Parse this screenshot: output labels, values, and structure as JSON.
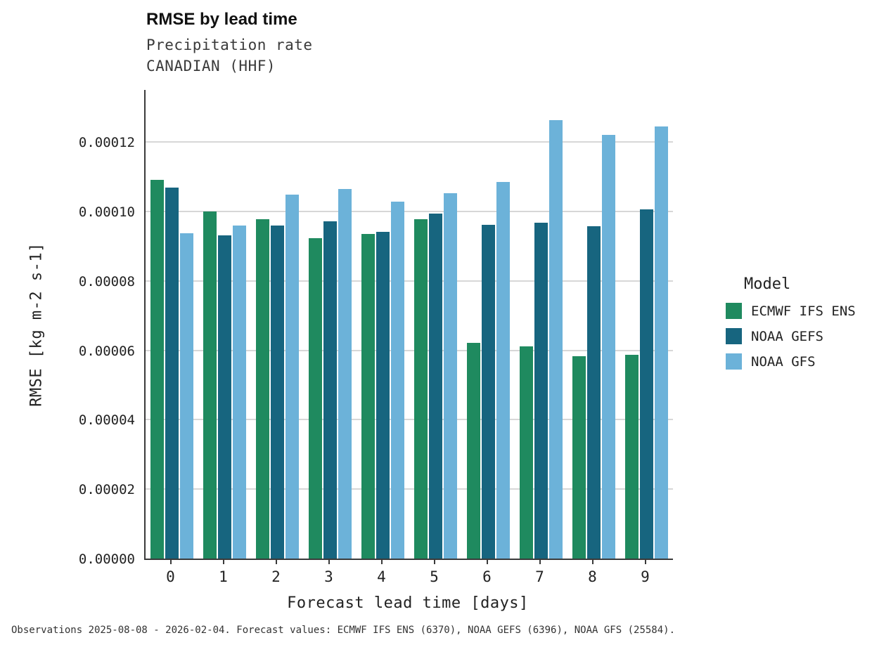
{
  "chart_data": {
    "type": "bar",
    "title": "RMSE by lead time",
    "subtitle": [
      "Precipitation rate",
      "CANADIAN (HHF)"
    ],
    "xlabel": "Forecast lead time [days]",
    "ylabel": "RMSE [kg m-2 s-1]",
    "legend_title": "Model",
    "categories": [
      "0",
      "1",
      "2",
      "3",
      "4",
      "5",
      "6",
      "7",
      "8",
      "9"
    ],
    "series": [
      {
        "name": "ECMWF IFS ENS",
        "color": "#1f8a5f",
        "values": [
          0.000109,
          0.0001,
          9.78e-05,
          9.23e-05,
          9.35e-05,
          9.78e-05,
          6.22e-05,
          6.12e-05,
          5.83e-05,
          5.87e-05
        ]
      },
      {
        "name": "NOAA GEFS",
        "color": "#17657f",
        "values": [
          0.0001068,
          9.32e-05,
          9.6e-05,
          9.72e-05,
          9.42e-05,
          9.93e-05,
          9.62e-05,
          9.68e-05,
          9.58e-05,
          0.0001005
        ]
      },
      {
        "name": "NOAA GFS",
        "color": "#6cb2d9",
        "values": [
          9.37e-05,
          9.6e-05,
          0.0001048,
          0.0001065,
          0.0001028,
          0.0001052,
          0.0001085,
          0.0001263,
          0.000122,
          0.0001245
        ]
      }
    ],
    "ylim": [
      0,
      0.000135
    ],
    "yticks": [
      0,
      2e-05,
      4e-05,
      6e-05,
      8e-05,
      0.0001,
      0.00012
    ],
    "ytick_labels": [
      "0.00000",
      "0.00002",
      "0.00004",
      "0.00006",
      "0.00008",
      "0.00010",
      "0.00012"
    ],
    "grid": "horizontal",
    "legend_position": "right",
    "caption": "Observations 2025-08-08 - 2026-02-04. Forecast values: ECMWF IFS ENS (6370), NOAA GEFS (6396), NOAA GFS (25584)."
  }
}
